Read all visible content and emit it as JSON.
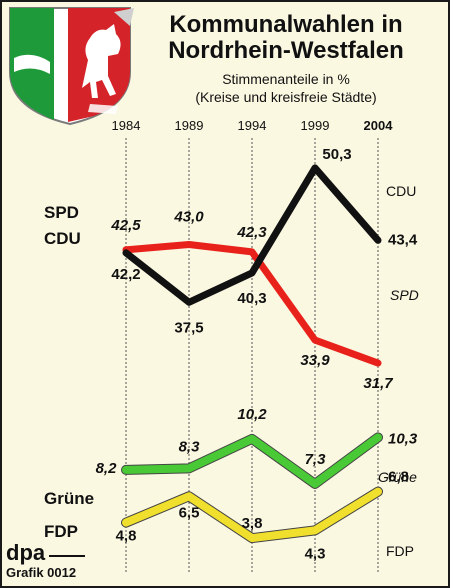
{
  "header": {
    "title_line1": "Kommunalwahlen in",
    "title_line2": "Nordrhein-Westfalen",
    "subtitle_line1": "Stimmenanteile in %",
    "subtitle_line2": "(Kreise und kreisfreie Städte)"
  },
  "credit": {
    "logo": "dpa",
    "grafik": "Grafik 0012"
  },
  "colors": {
    "background": "#fbf8e2",
    "spd": "#e8221b",
    "cdu": "#111111",
    "gruene": "#49c935",
    "fdp": "#f0df2c",
    "crest_green": "#1f9a3a",
    "crest_red": "#d5232a"
  },
  "chart_data": {
    "type": "line",
    "categories": [
      "1984",
      "1989",
      "1994",
      "1999",
      "2004"
    ],
    "series": [
      {
        "name": "SPD",
        "color": "#e8221b",
        "values": [
          42.5,
          43.0,
          42.3,
          33.9,
          31.7
        ],
        "labels": [
          "42,5",
          "43,0",
          "42,3",
          "33,9",
          "31,7"
        ],
        "left_label": "SPD",
        "right_label": "SPD"
      },
      {
        "name": "CDU",
        "color": "#111111",
        "values": [
          42.2,
          37.5,
          40.3,
          50.3,
          43.4
        ],
        "labels": [
          "42,2",
          "37,5",
          "40,3",
          "50,3",
          "43,4"
        ],
        "left_label": "CDU",
        "right_label": "CDU"
      },
      {
        "name": "Grüne",
        "color": "#49c935",
        "values": [
          8.2,
          8.3,
          10.2,
          7.3,
          10.3
        ],
        "labels": [
          "8,2",
          "8,3",
          "10,2",
          "7,3",
          "10,3"
        ],
        "left_label": "Grüne",
        "right_label": "Grüne"
      },
      {
        "name": "FDP",
        "color": "#f0df2c",
        "values": [
          4.8,
          6.5,
          3.8,
          4.3,
          6.8
        ],
        "labels": [
          "4,8",
          "6,5",
          "3,8",
          "4,3",
          "6,8"
        ],
        "left_label": "FDP",
        "right_label": "FDP"
      }
    ],
    "grid": "vertical dashed lines",
    "legend": "labels beside lines"
  }
}
